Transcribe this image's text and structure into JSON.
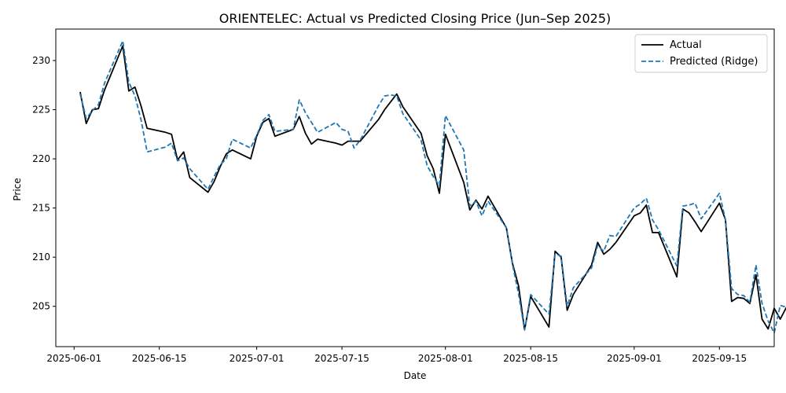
{
  "chart_data": {
    "type": "line",
    "title": "ORIENTELEC: Actual vs Predicted Closing Price (Jun–Sep 2025)",
    "xlabel": "Date",
    "ylabel": "Price",
    "xlim": [
      "2025-05-29",
      "2025-09-24"
    ],
    "ylim": [
      200.9,
      233.2
    ],
    "x_ticks": [
      "2025-06-01",
      "2025-06-15",
      "2025-07-01",
      "2025-07-15",
      "2025-08-01",
      "2025-08-15",
      "2025-09-01",
      "2025-09-15"
    ],
    "y_ticks": [
      205,
      210,
      215,
      220,
      225,
      230
    ],
    "grid": false,
    "legend": "top-right",
    "series": [
      {
        "name": "Actual",
        "color": "#000000",
        "style": "solid",
        "points": [
          [
            "2025-06-02",
            226.8
          ],
          [
            "2025-06-03",
            223.6
          ],
          [
            "2025-06-04",
            225.0
          ],
          [
            "2025-06-05",
            225.1
          ],
          [
            "2025-06-06",
            227.0
          ],
          [
            "2025-06-09",
            231.5
          ],
          [
            "2025-06-10",
            226.9
          ],
          [
            "2025-06-11",
            227.3
          ],
          [
            "2025-06-12",
            225.4
          ],
          [
            "2025-06-13",
            223.1
          ],
          [
            "2025-06-16",
            222.7
          ],
          [
            "2025-06-17",
            222.5
          ],
          [
            "2025-06-18",
            219.9
          ],
          [
            "2025-06-19",
            220.7
          ],
          [
            "2025-06-20",
            218.1
          ],
          [
            "2025-06-23",
            216.6
          ],
          [
            "2025-06-24",
            217.7
          ],
          [
            "2025-06-25",
            219.2
          ],
          [
            "2025-06-26",
            220.5
          ],
          [
            "2025-06-27",
            220.9
          ],
          [
            "2025-06-30",
            220.0
          ],
          [
            "2025-07-01",
            222.3
          ],
          [
            "2025-07-02",
            223.7
          ],
          [
            "2025-07-03",
            224.1
          ],
          [
            "2025-07-04",
            222.3
          ],
          [
            "2025-07-07",
            223.0
          ],
          [
            "2025-07-08",
            224.3
          ],
          [
            "2025-07-09",
            222.6
          ],
          [
            "2025-07-10",
            221.5
          ],
          [
            "2025-07-11",
            222.0
          ],
          [
            "2025-07-14",
            221.6
          ],
          [
            "2025-07-15",
            221.4
          ],
          [
            "2025-07-16",
            221.8
          ],
          [
            "2025-07-17",
            221.8
          ],
          [
            "2025-07-18",
            221.8
          ],
          [
            "2025-07-21",
            224.0
          ],
          [
            "2025-07-22",
            225.0
          ],
          [
            "2025-07-23",
            225.8
          ],
          [
            "2025-07-24",
            226.6
          ],
          [
            "2025-07-25",
            225.3
          ],
          [
            "2025-07-28",
            222.6
          ],
          [
            "2025-07-29",
            220.3
          ],
          [
            "2025-07-30",
            219.0
          ],
          [
            "2025-07-31",
            216.5
          ],
          [
            "2025-08-01",
            222.5
          ],
          [
            "2025-08-04",
            217.6
          ],
          [
            "2025-08-05",
            214.8
          ],
          [
            "2025-08-06",
            215.8
          ],
          [
            "2025-08-07",
            214.9
          ],
          [
            "2025-08-08",
            216.2
          ],
          [
            "2025-08-11",
            213.0
          ],
          [
            "2025-08-12",
            209.4
          ],
          [
            "2025-08-13",
            207.1
          ],
          [
            "2025-08-14",
            202.6
          ],
          [
            "2025-08-15",
            206.0
          ],
          [
            "2025-08-18",
            202.9
          ],
          [
            "2025-08-19",
            210.6
          ],
          [
            "2025-08-20",
            210.0
          ],
          [
            "2025-08-21",
            204.6
          ],
          [
            "2025-08-22",
            206.2
          ],
          [
            "2025-08-25",
            209.2
          ],
          [
            "2025-08-26",
            211.5
          ],
          [
            "2025-08-27",
            210.3
          ],
          [
            "2025-08-28",
            210.8
          ],
          [
            "2025-08-29",
            211.5
          ],
          [
            "2025-09-01",
            214.2
          ],
          [
            "2025-09-02",
            214.5
          ],
          [
            "2025-09-03",
            215.3
          ],
          [
            "2025-09-04",
            212.5
          ],
          [
            "2025-09-05",
            212.5
          ],
          [
            "2025-09-08",
            208.0
          ],
          [
            "2025-09-09",
            214.9
          ],
          [
            "2025-09-10",
            214.5
          ],
          [
            "2025-09-11",
            213.6
          ],
          [
            "2025-09-12",
            212.6
          ],
          [
            "2025-09-15",
            215.5
          ],
          [
            "2025-09-16",
            213.8
          ],
          [
            "2025-09-17",
            205.5
          ],
          [
            "2025-09-18",
            205.9
          ],
          [
            "2025-09-19",
            205.8
          ],
          [
            "2025-09-20",
            205.3
          ],
          [
            "2025-09-21",
            208.2
          ],
          [
            "2025-09-22",
            203.7
          ],
          [
            "2025-09-23",
            202.7
          ],
          [
            "2025-09-24",
            204.8
          ],
          [
            "2025-09-25",
            203.7
          ],
          [
            "2025-09-26",
            204.9
          ]
        ]
      },
      {
        "name": "Predicted (Ridge)",
        "color": "#1f77b4",
        "style": "dashed",
        "points": [
          [
            "2025-06-02",
            226.6
          ],
          [
            "2025-06-03",
            224.1
          ],
          [
            "2025-06-04",
            224.9
          ],
          [
            "2025-06-05",
            225.5
          ],
          [
            "2025-06-06",
            227.7
          ],
          [
            "2025-06-09",
            232.0
          ],
          [
            "2025-06-10",
            227.8
          ],
          [
            "2025-06-11",
            226.4
          ],
          [
            "2025-06-12",
            224.0
          ],
          [
            "2025-06-13",
            220.7
          ],
          [
            "2025-06-16",
            221.2
          ],
          [
            "2025-06-17",
            221.6
          ],
          [
            "2025-06-18",
            219.8
          ],
          [
            "2025-06-19",
            220.1
          ],
          [
            "2025-06-20",
            219.0
          ],
          [
            "2025-06-23",
            216.9
          ],
          [
            "2025-06-24",
            218.2
          ],
          [
            "2025-06-25",
            219.4
          ],
          [
            "2025-06-26",
            220.0
          ],
          [
            "2025-06-27",
            222.0
          ],
          [
            "2025-06-30",
            221.1
          ],
          [
            "2025-07-01",
            222.4
          ],
          [
            "2025-07-02",
            223.9
          ],
          [
            "2025-07-03",
            224.5
          ],
          [
            "2025-07-04",
            222.8
          ],
          [
            "2025-07-07",
            223.0
          ],
          [
            "2025-07-08",
            226.0
          ],
          [
            "2025-07-09",
            224.7
          ],
          [
            "2025-07-10",
            223.7
          ],
          [
            "2025-07-11",
            222.7
          ],
          [
            "2025-07-14",
            223.7
          ],
          [
            "2025-07-15",
            223.0
          ],
          [
            "2025-07-16",
            222.8
          ],
          [
            "2025-07-17",
            221.1
          ],
          [
            "2025-07-18",
            221.9
          ],
          [
            "2025-07-21",
            225.4
          ],
          [
            "2025-07-22",
            226.4
          ],
          [
            "2025-07-23",
            226.5
          ],
          [
            "2025-07-24",
            226.4
          ],
          [
            "2025-07-25",
            224.6
          ],
          [
            "2025-07-28",
            221.9
          ],
          [
            "2025-07-29",
            219.3
          ],
          [
            "2025-07-30",
            218.2
          ],
          [
            "2025-07-31",
            217.3
          ],
          [
            "2025-08-01",
            224.4
          ],
          [
            "2025-08-04",
            220.9
          ],
          [
            "2025-08-05",
            215.2
          ],
          [
            "2025-08-06",
            215.7
          ],
          [
            "2025-08-07",
            214.2
          ],
          [
            "2025-08-08",
            215.7
          ],
          [
            "2025-08-11",
            213.0
          ],
          [
            "2025-08-12",
            209.3
          ],
          [
            "2025-08-13",
            206.3
          ],
          [
            "2025-08-14",
            202.6
          ],
          [
            "2025-08-15",
            206.2
          ],
          [
            "2025-08-18",
            204.2
          ],
          [
            "2025-08-19",
            210.3
          ],
          [
            "2025-08-20",
            210.1
          ],
          [
            "2025-08-21",
            205.0
          ],
          [
            "2025-08-22",
            206.9
          ],
          [
            "2025-08-25",
            208.9
          ],
          [
            "2025-08-26",
            211.2
          ],
          [
            "2025-08-27",
            210.6
          ],
          [
            "2025-08-28",
            212.2
          ],
          [
            "2025-08-29",
            212.1
          ],
          [
            "2025-09-01",
            215.0
          ],
          [
            "2025-09-02",
            215.4
          ],
          [
            "2025-09-03",
            216.0
          ],
          [
            "2025-09-04",
            213.8
          ],
          [
            "2025-09-05",
            212.8
          ],
          [
            "2025-09-08",
            209.1
          ],
          [
            "2025-09-09",
            215.2
          ],
          [
            "2025-09-10",
            215.3
          ],
          [
            "2025-09-11",
            215.5
          ],
          [
            "2025-09-12",
            213.9
          ],
          [
            "2025-09-15",
            216.5
          ],
          [
            "2025-09-16",
            213.8
          ],
          [
            "2025-09-17",
            206.8
          ],
          [
            "2025-09-18",
            206.2
          ],
          [
            "2025-09-19",
            206.1
          ],
          [
            "2025-09-20",
            205.4
          ],
          [
            "2025-09-21",
            209.2
          ],
          [
            "2025-09-22",
            205.3
          ],
          [
            "2025-09-23",
            203.5
          ],
          [
            "2025-09-24",
            202.3
          ],
          [
            "2025-09-25",
            205.1
          ],
          [
            "2025-09-26",
            204.9
          ]
        ]
      }
    ]
  }
}
